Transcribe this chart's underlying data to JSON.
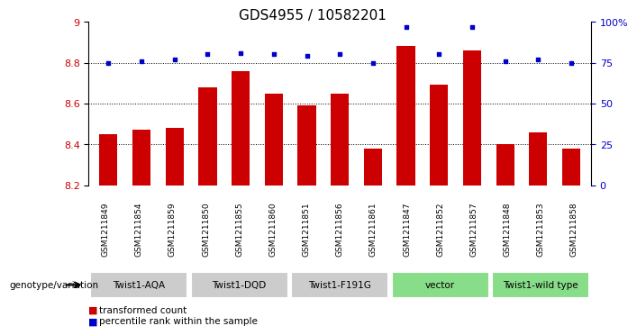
{
  "title": "GDS4955 / 10582201",
  "samples": [
    "GSM1211849",
    "GSM1211854",
    "GSM1211859",
    "GSM1211850",
    "GSM1211855",
    "GSM1211860",
    "GSM1211851",
    "GSM1211856",
    "GSM1211861",
    "GSM1211847",
    "GSM1211852",
    "GSM1211857",
    "GSM1211848",
    "GSM1211853",
    "GSM1211858"
  ],
  "bar_values": [
    8.45,
    8.47,
    8.48,
    8.68,
    8.76,
    8.65,
    8.59,
    8.65,
    8.38,
    8.88,
    8.69,
    8.86,
    8.4,
    8.46,
    8.38
  ],
  "percentile_values": [
    75,
    76,
    77,
    80,
    81,
    80,
    79,
    80,
    75,
    97,
    80,
    97,
    76,
    77,
    75
  ],
  "ylim_left": [
    8.2,
    9.0
  ],
  "ylim_right": [
    0,
    100
  ],
  "yticks_left": [
    8.2,
    8.4,
    8.6,
    8.8,
    9.0
  ],
  "ytick_labels_left": [
    "8.2",
    "8.4",
    "8.6",
    "8.8",
    "9"
  ],
  "yticks_right": [
    0,
    25,
    50,
    75,
    100
  ],
  "ytick_labels_right": [
    "0",
    "25",
    "50",
    "75",
    "100%"
  ],
  "grid_lines": [
    8.4,
    8.6,
    8.8
  ],
  "groups": [
    {
      "label": "Twist1-AQA",
      "indices": [
        0,
        1,
        2
      ],
      "color": "#cccccc"
    },
    {
      "label": "Twist1-DQD",
      "indices": [
        3,
        4,
        5
      ],
      "color": "#cccccc"
    },
    {
      "label": "Twist1-F191G",
      "indices": [
        6,
        7,
        8
      ],
      "color": "#cccccc"
    },
    {
      "label": "vector",
      "indices": [
        9,
        10,
        11
      ],
      "color": "#88dd88"
    },
    {
      "label": "Twist1-wild type",
      "indices": [
        12,
        13,
        14
      ],
      "color": "#88dd88"
    }
  ],
  "bar_color": "#cc0000",
  "dot_color": "#0000cc",
  "bar_width": 0.55,
  "genotype_label": "genotype/variation",
  "legend_bar_label": "transformed count",
  "legend_dot_label": "percentile rank within the sample",
  "tick_color_left": "#cc0000",
  "tick_color_right": "#0000cc",
  "title_fontsize": 11,
  "sample_fontsize": 6.5
}
